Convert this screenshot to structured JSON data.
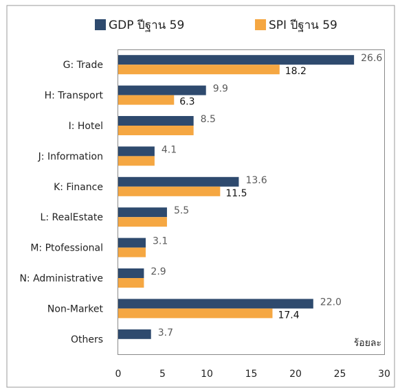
{
  "chart_data": {
    "type": "barh",
    "categories": [
      "G: Trade",
      "H: Transport",
      "I: Hotel",
      "J: Information",
      "K: Finance",
      "L: RealEstate",
      "M: Ptofessional",
      "N: Administrative",
      "Non-Market",
      "Others"
    ],
    "series": [
      {
        "name": "GDP ปีฐาน 59",
        "color": "#2e4a6e",
        "values": [
          26.6,
          9.9,
          8.5,
          4.1,
          13.6,
          5.5,
          3.1,
          2.9,
          22.0,
          3.7
        ],
        "value_labels": [
          "26.6",
          "9.9",
          "8.5",
          "4.1",
          "13.6",
          "5.5",
          "3.1",
          "2.9",
          "22.0",
          "3.7"
        ]
      },
      {
        "name": "SPI ปีฐาน 59",
        "color": "#f5a742",
        "values": [
          18.2,
          6.3,
          8.5,
          4.1,
          11.5,
          5.5,
          3.1,
          2.9,
          17.4,
          null
        ],
        "value_labels": [
          "18.2",
          "6.3",
          null,
          null,
          "11.5",
          null,
          null,
          null,
          "17.4",
          null
        ]
      }
    ],
    "xlim": [
      0,
      30
    ],
    "xticks": [
      0,
      5,
      10,
      15,
      20,
      25,
      30
    ],
    "unit_label": "ร้อยละ"
  }
}
